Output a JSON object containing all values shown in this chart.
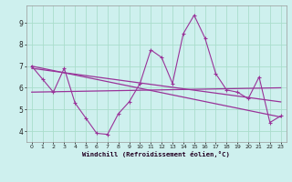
{
  "xlabel": "Windchill (Refroidissement éolien,°C)",
  "background_color": "#cef0ee",
  "grid_color": "#aaddcc",
  "line_color": "#993399",
  "xlim": [
    -0.5,
    23.5
  ],
  "ylim": [
    3.5,
    9.8
  ],
  "yticks": [
    4,
    5,
    6,
    7,
    8,
    9
  ],
  "xticks": [
    0,
    1,
    2,
    3,
    4,
    5,
    6,
    7,
    8,
    9,
    10,
    11,
    12,
    13,
    14,
    15,
    16,
    17,
    18,
    19,
    20,
    21,
    22,
    23
  ],
  "series1_x": [
    0,
    1,
    2,
    3,
    4,
    5,
    6,
    7,
    8,
    9,
    10,
    11,
    12,
    13,
    14,
    15,
    16,
    17,
    18,
    19,
    20,
    21,
    22,
    23
  ],
  "series1_y": [
    7.0,
    6.4,
    5.8,
    6.9,
    5.3,
    4.6,
    3.9,
    3.85,
    4.8,
    5.35,
    6.2,
    7.75,
    7.4,
    6.2,
    8.5,
    9.35,
    8.3,
    6.65,
    5.9,
    5.8,
    5.5,
    6.5,
    4.4,
    4.7
  ],
  "line2_x": [
    0,
    23
  ],
  "line2_y": [
    7.0,
    4.65
  ],
  "line3_x": [
    0,
    23
  ],
  "line3_y": [
    5.8,
    6.0
  ],
  "line4_x": [
    0,
    23
  ],
  "line4_y": [
    6.9,
    5.35
  ]
}
